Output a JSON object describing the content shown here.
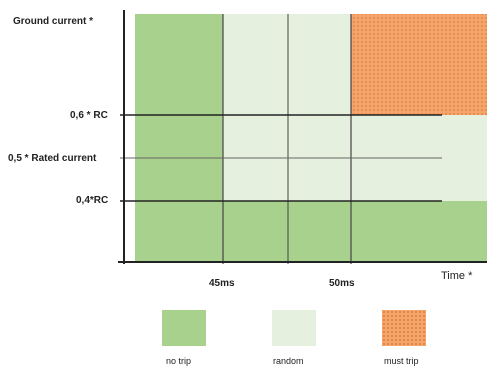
{
  "axis": {
    "y_title": "Ground current *",
    "x_title": "Time *",
    "y_ticks": {
      "upper": "0,6 * RC",
      "middle": "0,5 * Rated current",
      "lower": "0,4*RC"
    },
    "x_ticks": {
      "first": "45ms",
      "second": "50ms"
    }
  },
  "legend": [
    {
      "label": "no trip",
      "color": "#a9d18e"
    },
    {
      "label": "random",
      "color": "#e6f0de"
    },
    {
      "label": "must trip",
      "color": "#f4a56c"
    }
  ],
  "colors": {
    "axis": "#222222",
    "must_trip_dots": "#e07b39"
  }
}
